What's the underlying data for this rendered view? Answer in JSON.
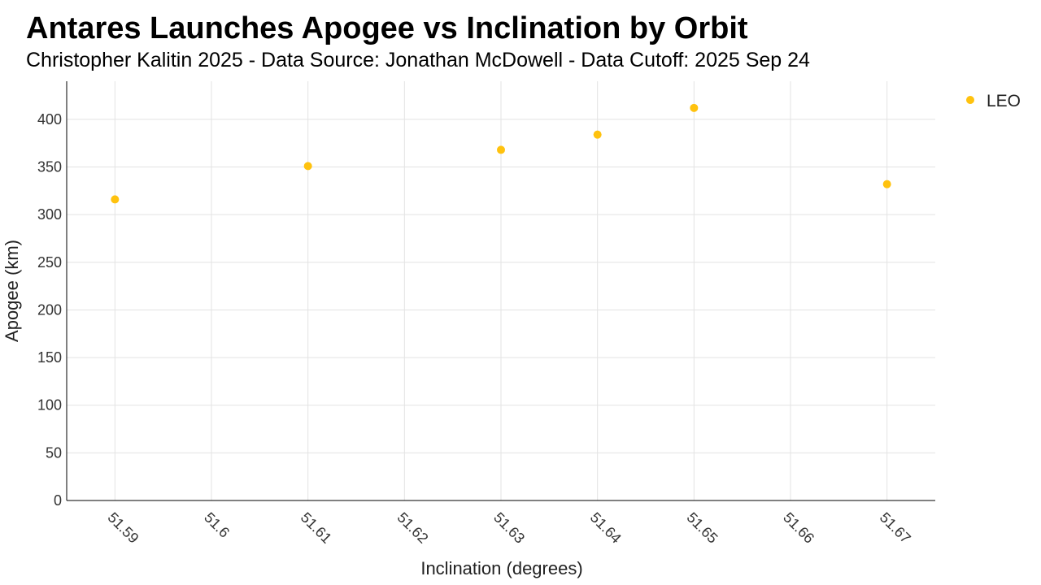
{
  "header": {
    "title": "Antares Launches Apogee vs Inclination by Orbit",
    "subtitle": "Christopher Kalitin 2025 - Data Source: Jonathan McDowell - Data Cutoff: 2025 Sep 24"
  },
  "chart_data": {
    "type": "scatter",
    "title": "Antares Launches Apogee vs Inclination by Orbit",
    "subtitle": "Christopher Kalitin 2025 - Data Source: Jonathan McDowell - Data Cutoff: 2025 Sep 24",
    "xlabel": "Inclination (degrees)",
    "ylabel": "Apogee (km)",
    "xlim": [
      51.585,
      51.675
    ],
    "ylim": [
      0,
      440
    ],
    "x_ticks": [
      51.59,
      51.6,
      51.61,
      51.62,
      51.63,
      51.64,
      51.65,
      51.66,
      51.67
    ],
    "x_tick_labels": [
      "51.59",
      "51.6",
      "51.61",
      "51.62",
      "51.63",
      "51.64",
      "51.65",
      "51.66",
      "51.67"
    ],
    "y_ticks": [
      0,
      50,
      100,
      150,
      200,
      250,
      300,
      350,
      400
    ],
    "y_tick_labels": [
      "0",
      "50",
      "100",
      "150",
      "200",
      "250",
      "300",
      "350",
      "400"
    ],
    "grid": true,
    "legend_position": "top-right",
    "series": [
      {
        "name": "LEO",
        "color": "#FFC20E",
        "points": [
          {
            "x": 51.59,
            "y": 316
          },
          {
            "x": 51.61,
            "y": 351
          },
          {
            "x": 51.63,
            "y": 368
          },
          {
            "x": 51.64,
            "y": 384
          },
          {
            "x": 51.65,
            "y": 412
          },
          {
            "x": 51.67,
            "y": 332
          }
        ]
      }
    ]
  }
}
